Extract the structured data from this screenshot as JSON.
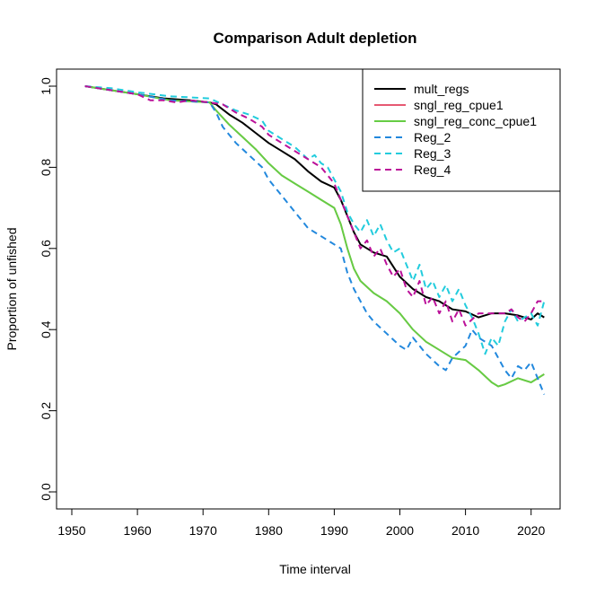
{
  "chart_data": {
    "type": "line",
    "title": "Comparison Adult depletion",
    "xlabel": "Time interval",
    "ylabel": "Proportion of unfished",
    "xlim": [
      1950,
      2022
    ],
    "ylim": [
      0.0,
      1.0
    ],
    "xticks": [
      1950,
      1960,
      1970,
      1980,
      1990,
      2000,
      2010,
      2020
    ],
    "yticks": [
      0.0,
      0.2,
      0.4,
      0.6,
      0.8,
      1.0
    ],
    "grid": false,
    "legend_position": "top-right",
    "series": [
      {
        "name": "mult_regs",
        "color": "#000000",
        "dash": "solid",
        "width": 2,
        "points": [
          [
            1952,
            1.0
          ],
          [
            1956,
            0.99
          ],
          [
            1960,
            0.98
          ],
          [
            1964,
            0.97
          ],
          [
            1968,
            0.965
          ],
          [
            1971,
            0.96
          ],
          [
            1972,
            0.955
          ],
          [
            1974,
            0.93
          ],
          [
            1976,
            0.91
          ],
          [
            1978,
            0.885
          ],
          [
            1980,
            0.86
          ],
          [
            1982,
            0.84
          ],
          [
            1984,
            0.82
          ],
          [
            1986,
            0.79
          ],
          [
            1988,
            0.765
          ],
          [
            1990,
            0.75
          ],
          [
            1991,
            0.72
          ],
          [
            1992,
            0.68
          ],
          [
            1993,
            0.64
          ],
          [
            1994,
            0.61
          ],
          [
            1996,
            0.59
          ],
          [
            1998,
            0.58
          ],
          [
            2000,
            0.53
          ],
          [
            2002,
            0.5
          ],
          [
            2004,
            0.48
          ],
          [
            2006,
            0.47
          ],
          [
            2008,
            0.45
          ],
          [
            2010,
            0.445
          ],
          [
            2012,
            0.43
          ],
          [
            2014,
            0.44
          ],
          [
            2016,
            0.44
          ],
          [
            2018,
            0.435
          ],
          [
            2020,
            0.425
          ],
          [
            2021,
            0.44
          ],
          [
            2022,
            0.43
          ]
        ]
      },
      {
        "name": "sngl_reg_cpue1",
        "color": "#dd2244",
        "dash": "solid",
        "width": 1.6,
        "points": [
          [
            1952,
            1.0
          ],
          [
            1956,
            0.99
          ],
          [
            1960,
            0.98
          ],
          [
            1965,
            0.965
          ],
          [
            1971,
            0.96
          ],
          [
            1972,
            0.94
          ],
          [
            1974,
            0.905
          ],
          [
            1976,
            0.875
          ],
          [
            1978,
            0.845
          ],
          [
            1980,
            0.81
          ],
          [
            1982,
            0.78
          ],
          [
            1984,
            0.76
          ],
          [
            1986,
            0.74
          ],
          [
            1988,
            0.72
          ],
          [
            1990,
            0.7
          ],
          [
            1991,
            0.66
          ],
          [
            1992,
            0.6
          ],
          [
            1993,
            0.55
          ],
          [
            1994,
            0.52
          ],
          [
            1996,
            0.49
          ],
          [
            1998,
            0.47
          ],
          [
            2000,
            0.44
          ],
          [
            2002,
            0.4
          ],
          [
            2004,
            0.37
          ],
          [
            2006,
            0.35
          ],
          [
            2008,
            0.33
          ],
          [
            2010,
            0.325
          ],
          [
            2012,
            0.3
          ],
          [
            2014,
            0.27
          ],
          [
            2015,
            0.26
          ],
          [
            2016,
            0.265
          ],
          [
            2018,
            0.28
          ],
          [
            2020,
            0.27
          ],
          [
            2022,
            0.29
          ]
        ]
      },
      {
        "name": "sngl_reg_conc_cpue1",
        "color": "#66cc44",
        "dash": "solid",
        "width": 2,
        "points": [
          [
            1952,
            1.0
          ],
          [
            1956,
            0.99
          ],
          [
            1960,
            0.98
          ],
          [
            1965,
            0.965
          ],
          [
            1971,
            0.96
          ],
          [
            1972,
            0.94
          ],
          [
            1974,
            0.905
          ],
          [
            1976,
            0.875
          ],
          [
            1978,
            0.845
          ],
          [
            1980,
            0.81
          ],
          [
            1982,
            0.78
          ],
          [
            1984,
            0.76
          ],
          [
            1986,
            0.74
          ],
          [
            1988,
            0.72
          ],
          [
            1990,
            0.7
          ],
          [
            1991,
            0.66
          ],
          [
            1992,
            0.6
          ],
          [
            1993,
            0.55
          ],
          [
            1994,
            0.52
          ],
          [
            1996,
            0.49
          ],
          [
            1998,
            0.47
          ],
          [
            2000,
            0.44
          ],
          [
            2002,
            0.4
          ],
          [
            2004,
            0.37
          ],
          [
            2006,
            0.35
          ],
          [
            2008,
            0.33
          ],
          [
            2010,
            0.325
          ],
          [
            2012,
            0.3
          ],
          [
            2014,
            0.27
          ],
          [
            2015,
            0.26
          ],
          [
            2016,
            0.265
          ],
          [
            2018,
            0.28
          ],
          [
            2020,
            0.27
          ],
          [
            2022,
            0.29
          ]
        ]
      },
      {
        "name": "Reg_2",
        "color": "#2288dd",
        "dash": "dashed",
        "width": 2,
        "points": [
          [
            1952,
            1.0
          ],
          [
            1956,
            0.99
          ],
          [
            1960,
            0.98
          ],
          [
            1965,
            0.965
          ],
          [
            1971,
            0.96
          ],
          [
            1972,
            0.935
          ],
          [
            1973,
            0.9
          ],
          [
            1975,
            0.86
          ],
          [
            1977,
            0.83
          ],
          [
            1979,
            0.8
          ],
          [
            1980,
            0.77
          ],
          [
            1982,
            0.73
          ],
          [
            1984,
            0.69
          ],
          [
            1986,
            0.65
          ],
          [
            1988,
            0.63
          ],
          [
            1990,
            0.61
          ],
          [
            1991,
            0.6
          ],
          [
            1992,
            0.54
          ],
          [
            1993,
            0.5
          ],
          [
            1994,
            0.47
          ],
          [
            1995,
            0.44
          ],
          [
            1996,
            0.42
          ],
          [
            1998,
            0.39
          ],
          [
            2000,
            0.36
          ],
          [
            2001,
            0.35
          ],
          [
            2002,
            0.38
          ],
          [
            2004,
            0.34
          ],
          [
            2006,
            0.31
          ],
          [
            2007,
            0.3
          ],
          [
            2008,
            0.33
          ],
          [
            2010,
            0.36
          ],
          [
            2011,
            0.4
          ],
          [
            2012,
            0.38
          ],
          [
            2014,
            0.36
          ],
          [
            2015,
            0.33
          ],
          [
            2016,
            0.3
          ],
          [
            2017,
            0.28
          ],
          [
            2018,
            0.31
          ],
          [
            2019,
            0.3
          ],
          [
            2020,
            0.32
          ],
          [
            2021,
            0.28
          ],
          [
            2022,
            0.24
          ]
        ]
      },
      {
        "name": "Reg_3",
        "color": "#22ccdd",
        "dash": "dashed",
        "width": 2,
        "points": [
          [
            1952,
            1.0
          ],
          [
            1956,
            0.995
          ],
          [
            1960,
            0.985
          ],
          [
            1965,
            0.975
          ],
          [
            1971,
            0.97
          ],
          [
            1973,
            0.955
          ],
          [
            1975,
            0.94
          ],
          [
            1977,
            0.93
          ],
          [
            1979,
            0.915
          ],
          [
            1980,
            0.89
          ],
          [
            1982,
            0.87
          ],
          [
            1984,
            0.85
          ],
          [
            1986,
            0.82
          ],
          [
            1987,
            0.83
          ],
          [
            1988,
            0.81
          ],
          [
            1989,
            0.8
          ],
          [
            1990,
            0.77
          ],
          [
            1991,
            0.74
          ],
          [
            1992,
            0.69
          ],
          [
            1993,
            0.66
          ],
          [
            1994,
            0.64
          ],
          [
            1995,
            0.67
          ],
          [
            1996,
            0.63
          ],
          [
            1997,
            0.66
          ],
          [
            1998,
            0.62
          ],
          [
            1999,
            0.59
          ],
          [
            2000,
            0.6
          ],
          [
            2001,
            0.56
          ],
          [
            2002,
            0.52
          ],
          [
            2003,
            0.56
          ],
          [
            2004,
            0.5
          ],
          [
            2005,
            0.52
          ],
          [
            2006,
            0.48
          ],
          [
            2007,
            0.51
          ],
          [
            2008,
            0.47
          ],
          [
            2009,
            0.5
          ],
          [
            2010,
            0.46
          ],
          [
            2011,
            0.43
          ],
          [
            2012,
            0.39
          ],
          [
            2013,
            0.34
          ],
          [
            2014,
            0.38
          ],
          [
            2015,
            0.36
          ],
          [
            2016,
            0.42
          ],
          [
            2017,
            0.45
          ],
          [
            2018,
            0.42
          ],
          [
            2019,
            0.43
          ],
          [
            2020,
            0.44
          ],
          [
            2021,
            0.41
          ],
          [
            2022,
            0.47
          ]
        ]
      },
      {
        "name": "Reg_4",
        "color": "#bb1199",
        "dash": "dashed",
        "width": 2,
        "points": [
          [
            1952,
            1.0
          ],
          [
            1956,
            0.99
          ],
          [
            1960,
            0.98
          ],
          [
            1962,
            0.965
          ],
          [
            1964,
            0.965
          ],
          [
            1966,
            0.96
          ],
          [
            1968,
            0.965
          ],
          [
            1971,
            0.96
          ],
          [
            1973,
            0.955
          ],
          [
            1975,
            0.935
          ],
          [
            1977,
            0.92
          ],
          [
            1979,
            0.9
          ],
          [
            1980,
            0.88
          ],
          [
            1982,
            0.86
          ],
          [
            1984,
            0.84
          ],
          [
            1986,
            0.82
          ],
          [
            1988,
            0.8
          ],
          [
            1989,
            0.78
          ],
          [
            1990,
            0.76
          ],
          [
            1991,
            0.72
          ],
          [
            1992,
            0.68
          ],
          [
            1993,
            0.64
          ],
          [
            1994,
            0.6
          ],
          [
            1995,
            0.62
          ],
          [
            1996,
            0.58
          ],
          [
            1997,
            0.6
          ],
          [
            1998,
            0.56
          ],
          [
            1999,
            0.53
          ],
          [
            2000,
            0.55
          ],
          [
            2001,
            0.5
          ],
          [
            2002,
            0.48
          ],
          [
            2003,
            0.52
          ],
          [
            2004,
            0.46
          ],
          [
            2005,
            0.48
          ],
          [
            2006,
            0.44
          ],
          [
            2007,
            0.47
          ],
          [
            2008,
            0.42
          ],
          [
            2009,
            0.45
          ],
          [
            2010,
            0.41
          ],
          [
            2012,
            0.44
          ],
          [
            2014,
            0.44
          ],
          [
            2016,
            0.44
          ],
          [
            2017,
            0.45
          ],
          [
            2018,
            0.43
          ],
          [
            2019,
            0.42
          ],
          [
            2020,
            0.44
          ],
          [
            2021,
            0.47
          ],
          [
            2022,
            0.47
          ]
        ]
      }
    ]
  }
}
